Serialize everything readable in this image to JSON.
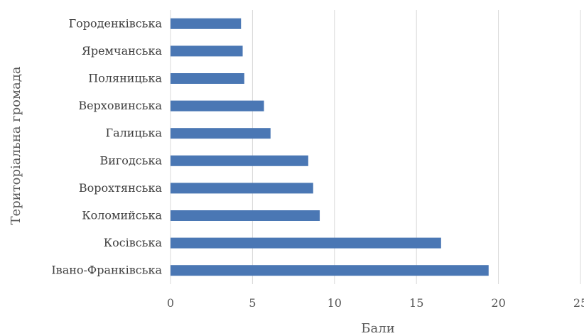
{
  "chart_data": {
    "type": "bar",
    "orientation": "horizontal",
    "title": "",
    "xlabel": "Бали",
    "ylabel": "Територіальна громада",
    "categories": [
      "Городенківська",
      "Яремчанська",
      "Поляницька",
      "Верховинська",
      "Галицька",
      "Вигодська",
      "Ворохтянська",
      "Коломийська",
      "Косівська",
      "Івано-Франківська"
    ],
    "values": [
      4.3,
      4.4,
      4.5,
      5.7,
      6.1,
      8.4,
      8.7,
      9.1,
      16.5,
      19.4
    ],
    "xlim": [
      0,
      25
    ],
    "xticks": [
      "0",
      "5",
      "10",
      "15",
      "20",
      "25"
    ],
    "grid": "vertical",
    "legend": "none",
    "bar_color": "#4a77b4",
    "grid_color": "#d9d9d9"
  }
}
